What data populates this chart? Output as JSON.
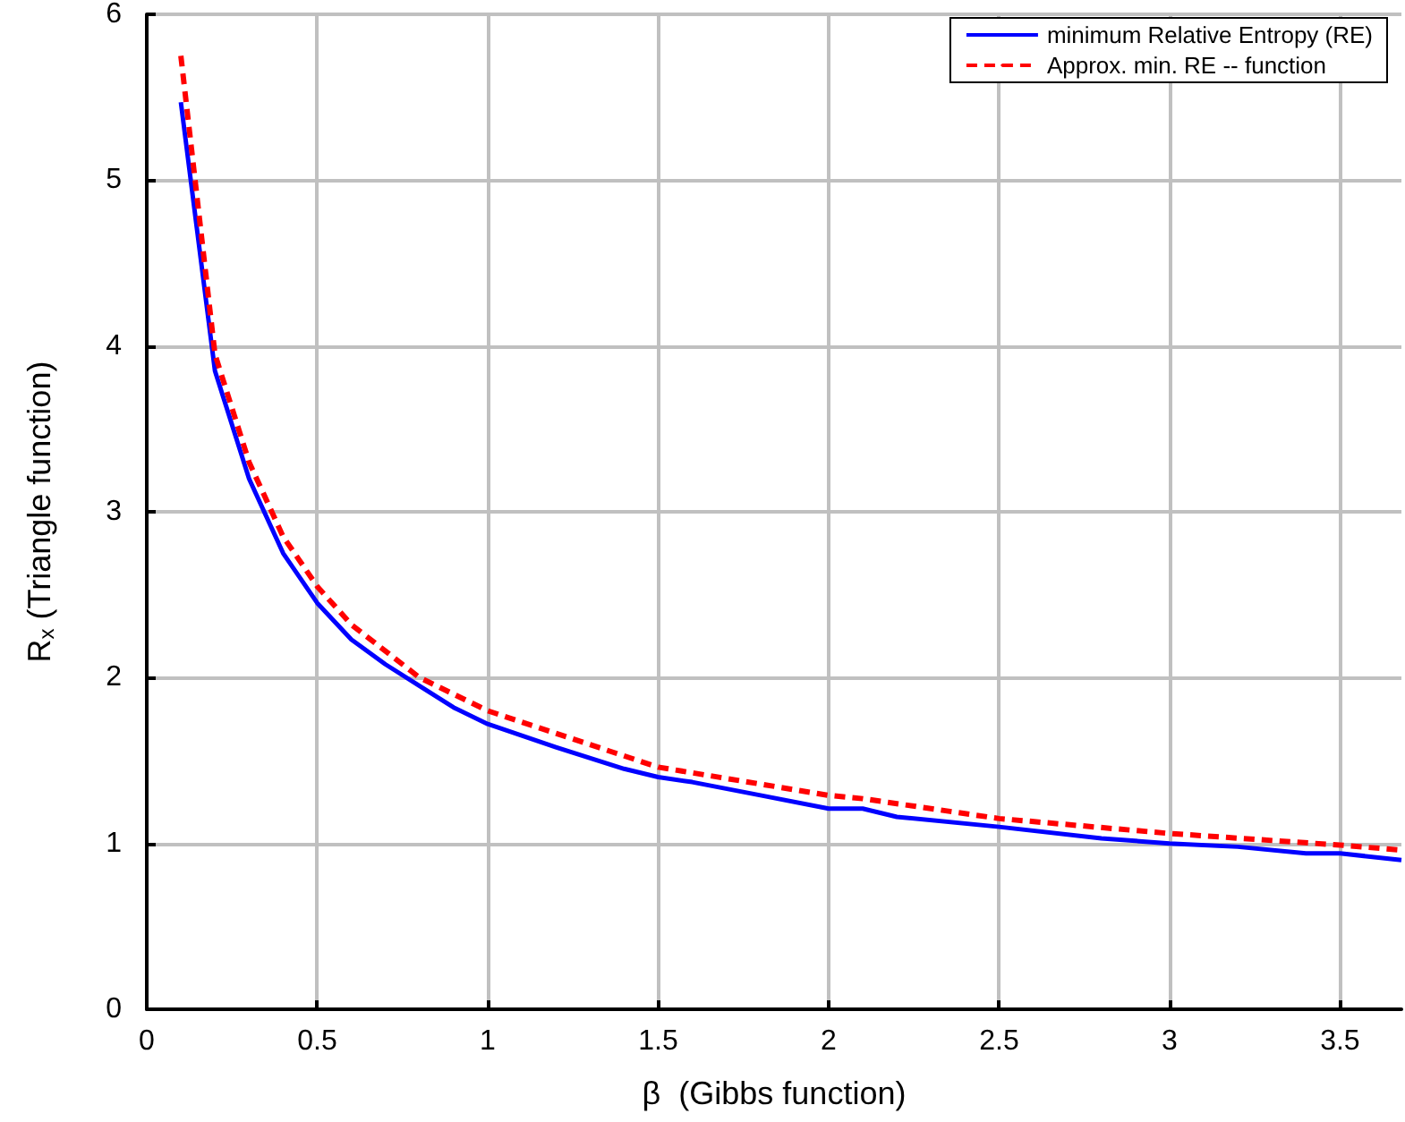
{
  "chart_data": {
    "type": "line",
    "xlabel": "β  (Gibbs function)",
    "ylabel": "R$_{x}$ (Triangle function)",
    "xlim": [
      0,
      3.68
    ],
    "xticks": [
      0,
      0.5,
      1,
      1.5,
      2,
      2.5,
      3,
      3.5
    ],
    "ylim": [
      0,
      6
    ],
    "yticks": [
      0,
      1,
      2,
      3,
      4,
      5,
      6
    ],
    "grid": true,
    "legend": "top right",
    "marker": "none",
    "series": [
      {
        "name": "minimum Relative Entropy (RE)",
        "color": "#0000ff",
        "line_style": "solid",
        "x": [
          0.1,
          0.2,
          0.3,
          0.4,
          0.5,
          0.6,
          0.7,
          0.8,
          0.9,
          1.0,
          1.2,
          1.4,
          1.5,
          1.6,
          1.8,
          2.0,
          2.1,
          2.2,
          2.5,
          2.8,
          3.0,
          3.2,
          3.4,
          3.5,
          3.68
        ],
        "values": [
          5.47,
          3.85,
          3.2,
          2.75,
          2.45,
          2.23,
          2.08,
          1.95,
          1.82,
          1.72,
          1.58,
          1.45,
          1.4,
          1.37,
          1.29,
          1.21,
          1.21,
          1.16,
          1.1,
          1.03,
          1.0,
          0.98,
          0.94,
          0.94,
          0.9
        ]
      },
      {
        "name": "Approx. min. RE -- function",
        "color": "#ff0000",
        "line_style": "dashed",
        "x": [
          0.1,
          0.2,
          0.3,
          0.4,
          0.5,
          0.6,
          0.8,
          1.0,
          1.5,
          2.0,
          2.1,
          2.5,
          3.0,
          3.5,
          3.68
        ],
        "values": [
          5.75,
          3.95,
          3.3,
          2.85,
          2.55,
          2.32,
          2.0,
          1.8,
          1.46,
          1.29,
          1.27,
          1.15,
          1.06,
          0.99,
          0.96
        ]
      }
    ]
  }
}
